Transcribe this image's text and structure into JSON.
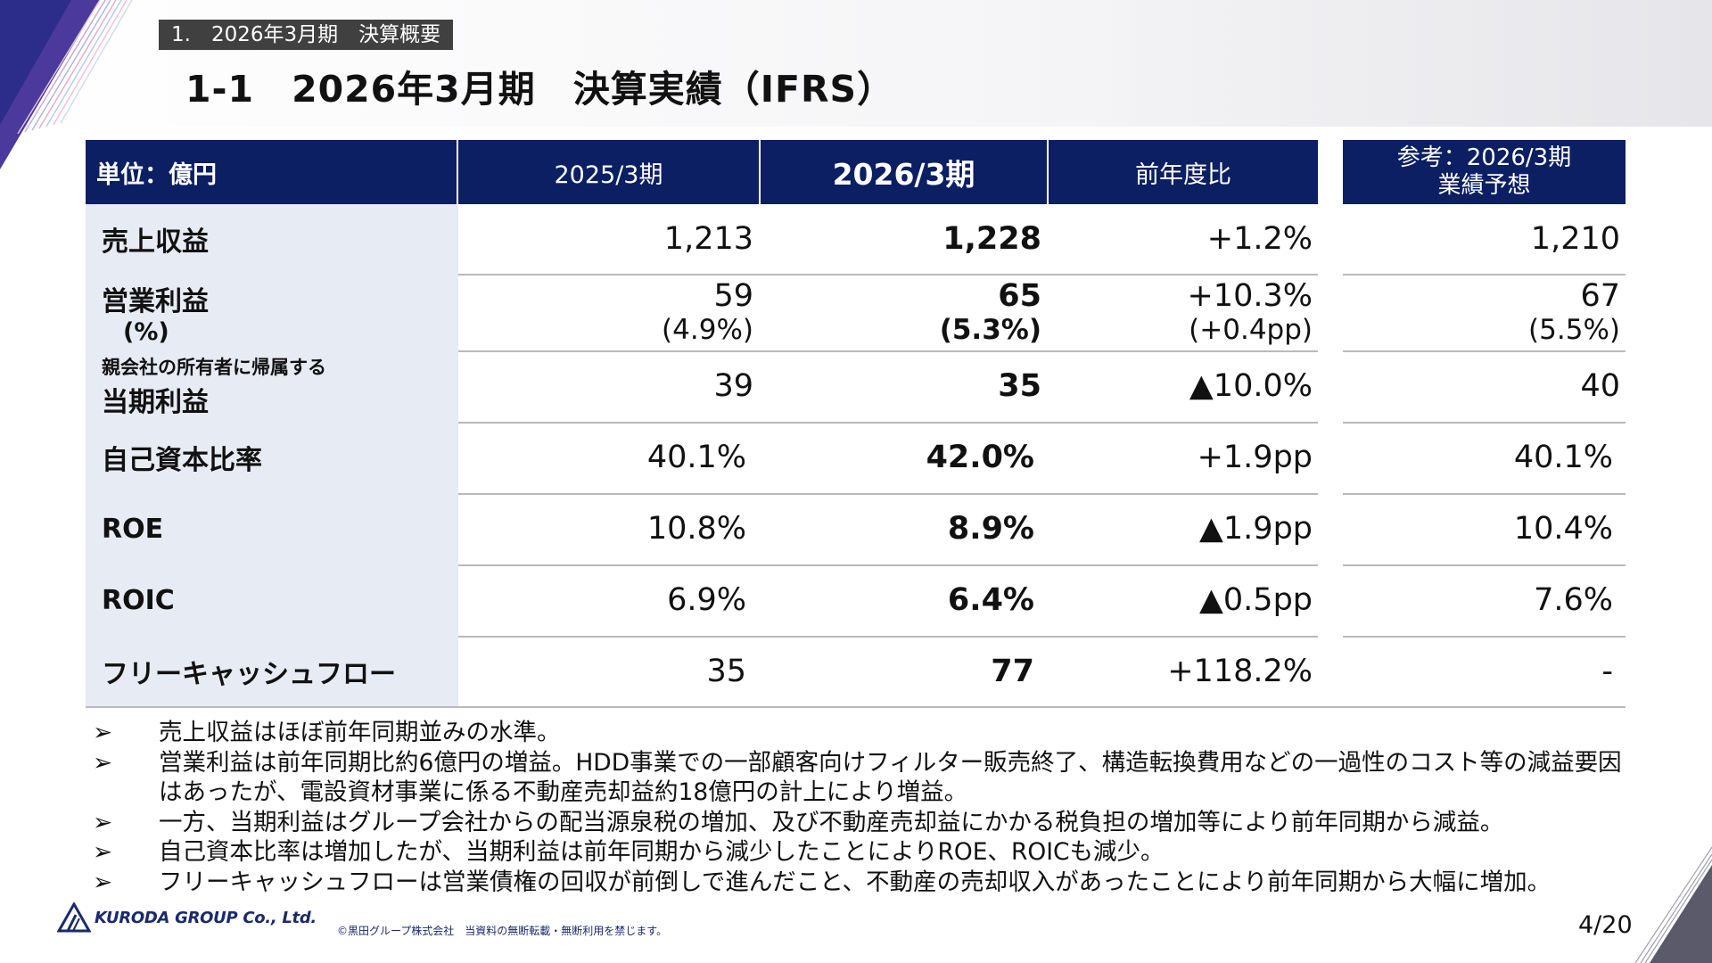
{
  "section_tag": "1.　2026年3月期　決算概要",
  "title": "1-1　2026年3月期　決算実績（IFRS）",
  "table": {
    "headers": {
      "unit": "単位：億円",
      "prev": "2025/3期",
      "curr": "2026/3期",
      "yoy": "前年度比",
      "ref_line1": "参考：2026/3期",
      "ref_line2": "業績予想"
    },
    "rows": [
      {
        "label": "売上収益",
        "prev": "1,213",
        "curr": "1,228",
        "yoy": "+1.2%",
        "ref": "1,210"
      },
      {
        "label": "営業利益",
        "label_sub": "(%)",
        "prev": "59",
        "prev_sub": "(4.9%)",
        "curr": "65",
        "curr_sub": "(5.3%)",
        "yoy": "+10.3%",
        "yoy_sub": "(+0.4pp)",
        "ref": "67",
        "ref_sub": "(5.5%)"
      },
      {
        "label_small": "親会社の所有者に帰属する",
        "label": "当期利益",
        "prev": "39",
        "curr": "35",
        "yoy": "▲10.0%",
        "ref": "40"
      },
      {
        "label": "自己資本比率",
        "prev": "40.1%",
        "curr": "42.0%",
        "yoy": "+1.9pp",
        "ref": "40.1%"
      },
      {
        "label": "ROE",
        "prev": "10.8%",
        "curr": "8.9%",
        "yoy": "▲1.9pp",
        "ref": "10.4%"
      },
      {
        "label": "ROIC",
        "prev": "6.9%",
        "curr": "6.4%",
        "yoy": "▲0.5pp",
        "ref": "7.6%"
      },
      {
        "label": "フリーキャッシュフロー",
        "prev": "35",
        "curr": "77",
        "yoy": "+118.2%",
        "ref": "-"
      }
    ]
  },
  "bullets": {
    "marker": "➢",
    "items": [
      "売上収益はほぼ前年同期並みの水準。",
      "営業利益は前年同期比約6億円の増益。HDD事業での一部顧客向けフィルター販売終了、構造転換費用などの一過性のコスト等の減益要因はあったが、電設資材事業に係る不動産売却益約18億円の計上により増益。",
      "一方、当期利益はグループ会社からの配当源泉税の増加、及び不動産売却益にかかる税負担の増加等により前年同期から減益。",
      "自己資本比率は増加したが、当期利益は前年同期から減少したことによりROE、ROICも減少。",
      "フリーキャッシュフローは営業債権の回収が前倒しで進んだこと、不動産の売却収入があったことにより前年同期から大幅に増加。"
    ]
  },
  "footer": {
    "logo_text": "KURODA GROUP Co., Ltd.",
    "copyright": "©黒田グループ株式会社　当資料の無断転載・無断利用を禁じます。",
    "page": "4/20"
  },
  "colors": {
    "header_navy": "#0c1f63",
    "label_bg": "#e6ebf4",
    "tag_bg": "#404040"
  }
}
